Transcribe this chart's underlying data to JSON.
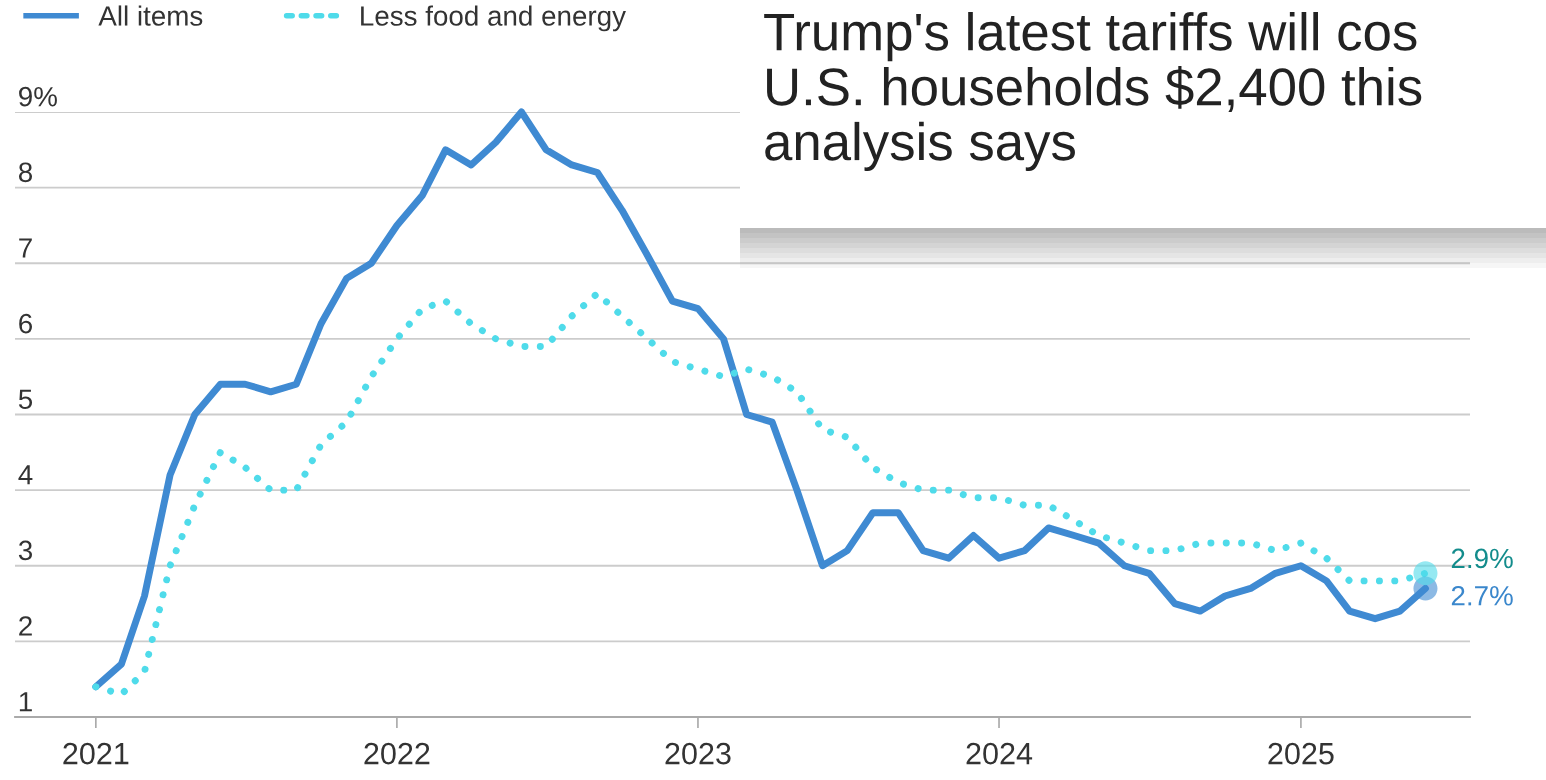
{
  "chart_data": {
    "type": "line",
    "x": [
      "2021-01",
      "2021-02",
      "2021-03",
      "2021-04",
      "2021-05",
      "2021-06",
      "2021-07",
      "2021-08",
      "2021-09",
      "2021-10",
      "2021-11",
      "2021-12",
      "2022-01",
      "2022-02",
      "2022-03",
      "2022-04",
      "2022-05",
      "2022-06",
      "2022-07",
      "2022-08",
      "2022-09",
      "2022-10",
      "2022-11",
      "2022-12",
      "2023-01",
      "2023-02",
      "2023-03",
      "2023-04",
      "2023-05",
      "2023-06",
      "2023-07",
      "2023-08",
      "2023-09",
      "2023-10",
      "2023-11",
      "2023-12",
      "2024-01",
      "2024-02",
      "2024-03",
      "2024-04",
      "2024-05",
      "2024-06",
      "2024-07",
      "2024-08",
      "2024-09",
      "2024-10",
      "2024-11",
      "2024-12",
      "2025-01",
      "2025-02",
      "2025-03",
      "2025-04",
      "2025-05",
      "2025-06"
    ],
    "series": [
      {
        "name": "All items",
        "color": "#3f8ad2",
        "line_style": "solid",
        "values": [
          1.4,
          1.7,
          2.6,
          4.2,
          5.0,
          5.4,
          5.4,
          5.3,
          5.4,
          6.2,
          6.8,
          7.0,
          7.5,
          7.9,
          8.5,
          8.3,
          8.6,
          9.0,
          8.5,
          8.3,
          8.2,
          7.7,
          7.1,
          6.5,
          6.4,
          6.0,
          5.0,
          4.9,
          4.0,
          3.0,
          3.2,
          3.7,
          3.7,
          3.2,
          3.1,
          3.4,
          3.1,
          3.2,
          3.5,
          3.4,
          3.3,
          3.0,
          2.9,
          2.5,
          2.4,
          2.6,
          2.7,
          2.9,
          3.0,
          2.8,
          2.4,
          2.3,
          2.4,
          2.7
        ]
      },
      {
        "name": "Less food and energy",
        "color": "#4fdbea",
        "line_style": "dotted",
        "values": [
          1.4,
          1.3,
          1.6,
          3.0,
          3.8,
          4.5,
          4.3,
          4.0,
          4.0,
          4.6,
          4.9,
          5.5,
          6.0,
          6.4,
          6.5,
          6.2,
          6.0,
          5.9,
          5.9,
          6.3,
          6.6,
          6.3,
          6.0,
          5.7,
          5.6,
          5.5,
          5.6,
          5.5,
          5.3,
          4.8,
          4.7,
          4.3,
          4.1,
          4.0,
          4.0,
          3.9,
          3.9,
          3.8,
          3.8,
          3.6,
          3.4,
          3.3,
          3.2,
          3.2,
          3.3,
          3.3,
          3.3,
          3.2,
          3.3,
          3.1,
          2.8,
          2.8,
          2.8,
          2.9
        ]
      }
    ],
    "xlim": [
      "2020-09-25",
      "2025-07-25"
    ],
    "xticks": [
      {
        "value": "2021-01",
        "label": "2021"
      },
      {
        "value": "2022-01",
        "label": "2022"
      },
      {
        "value": "2023-01",
        "label": "2023"
      },
      {
        "value": "2024-01",
        "label": "2024"
      },
      {
        "value": "2025-01",
        "label": "2025"
      }
    ],
    "ylim": [
      1,
      9
    ],
    "yticks": [
      1,
      2,
      3,
      4,
      5,
      6,
      7,
      8,
      {
        "value": 9,
        "label": "9%"
      }
    ],
    "grid": "y",
    "legend": "top left",
    "annotations": [
      {
        "text": "2.7%",
        "x": "2025-06",
        "y": 2.7
      },
      {
        "text": "2.9%",
        "x": "2025-06",
        "y": 2.9
      },
      "Trump's latest tariffs will cos\nU.S. households $2,400 this\nanalysis says"
    ]
  }
}
